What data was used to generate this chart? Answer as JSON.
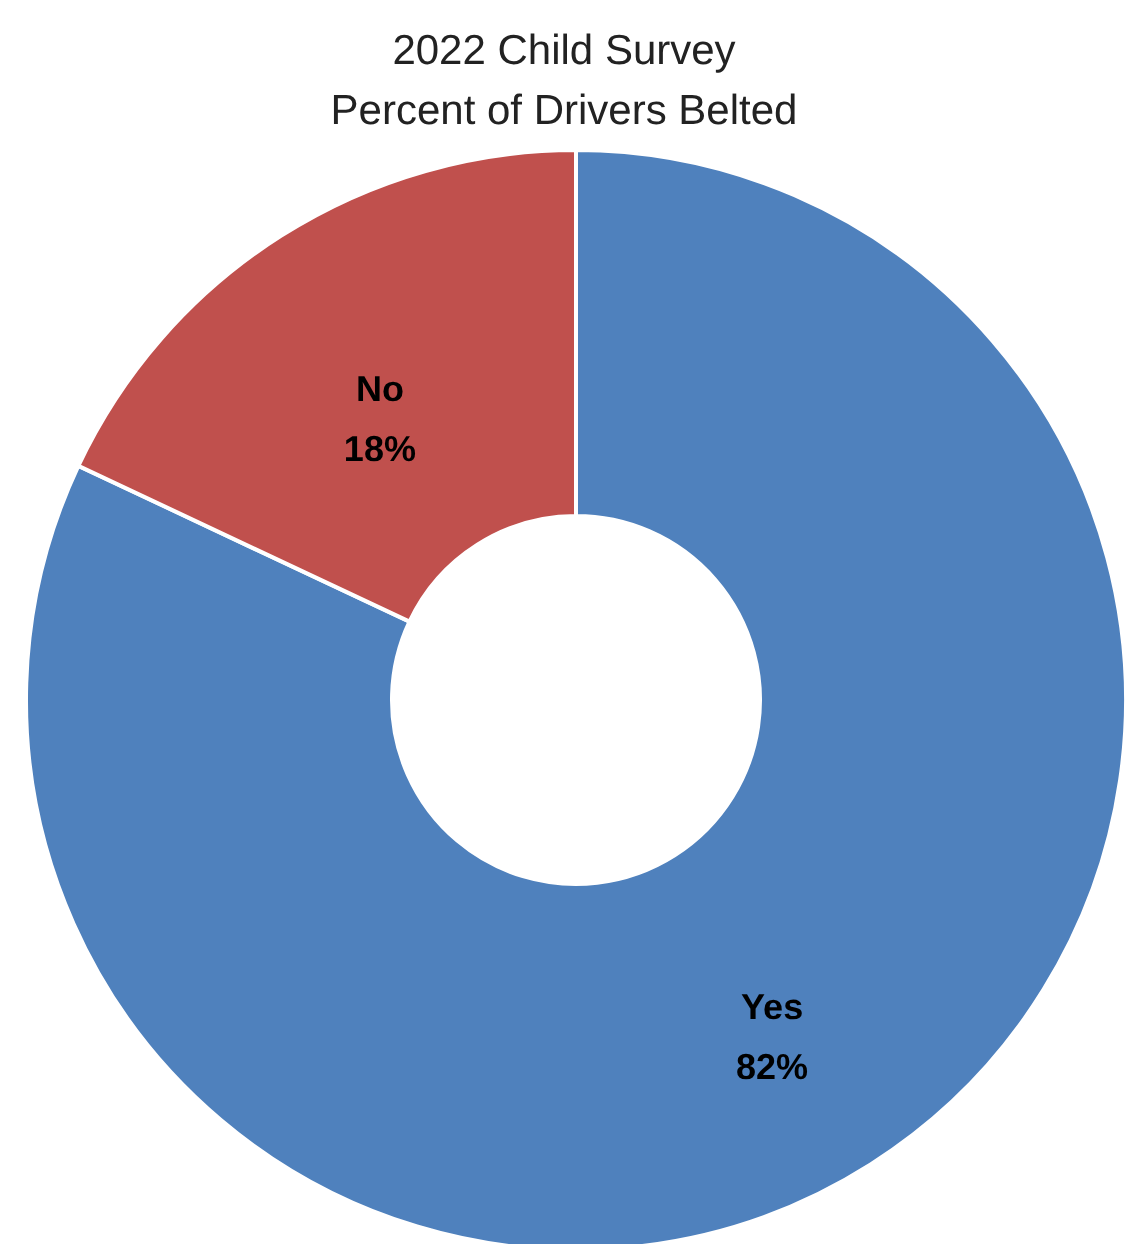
{
  "chart_data": {
    "type": "donut",
    "title": "2022 Child Survey\nPercent of Drivers Belted",
    "categories": [
      "Yes",
      "No"
    ],
    "values": [
      82,
      18
    ],
    "colors": [
      "#4f81bd",
      "#c0504d"
    ],
    "value_labels": [
      "82%",
      "18%"
    ],
    "legend": false
  }
}
